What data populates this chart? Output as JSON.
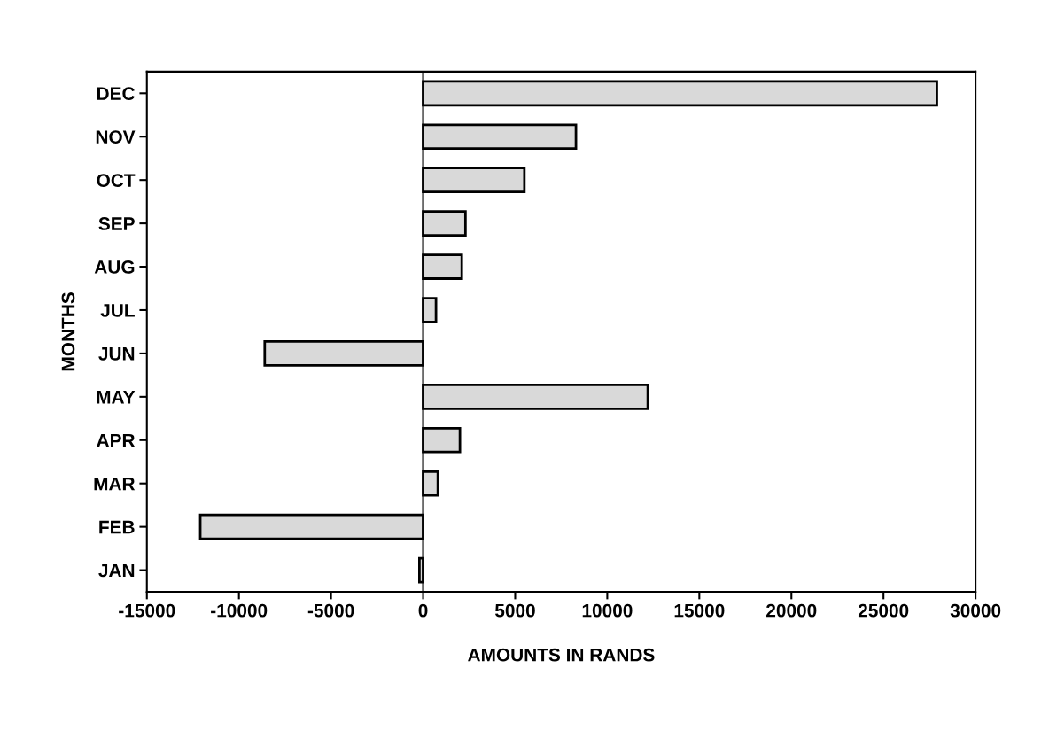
{
  "chart_data": {
    "type": "bar",
    "orientation": "horizontal",
    "xlabel": "AMOUNTS IN RANDS",
    "ylabel": "MONTHS",
    "categories": [
      "DEC",
      "NOV",
      "OCT",
      "SEP",
      "AUG",
      "JUL",
      "JUN",
      "MAY",
      "APR",
      "MAR",
      "FEB",
      "JAN"
    ],
    "values": [
      27900,
      8300,
      5500,
      2300,
      2100,
      700,
      -8600,
      12200,
      2000,
      800,
      -12100,
      -200
    ],
    "color": "#d9d9d9",
    "xlim": [
      -15000,
      30000
    ],
    "xticks": [
      -15000,
      -10000,
      -5000,
      0,
      5000,
      10000,
      15000,
      20000,
      25000,
      30000
    ],
    "ref_lines": [
      {
        "axis": "x",
        "value": 0,
        "color": "#000000"
      }
    ],
    "grid": false
  }
}
